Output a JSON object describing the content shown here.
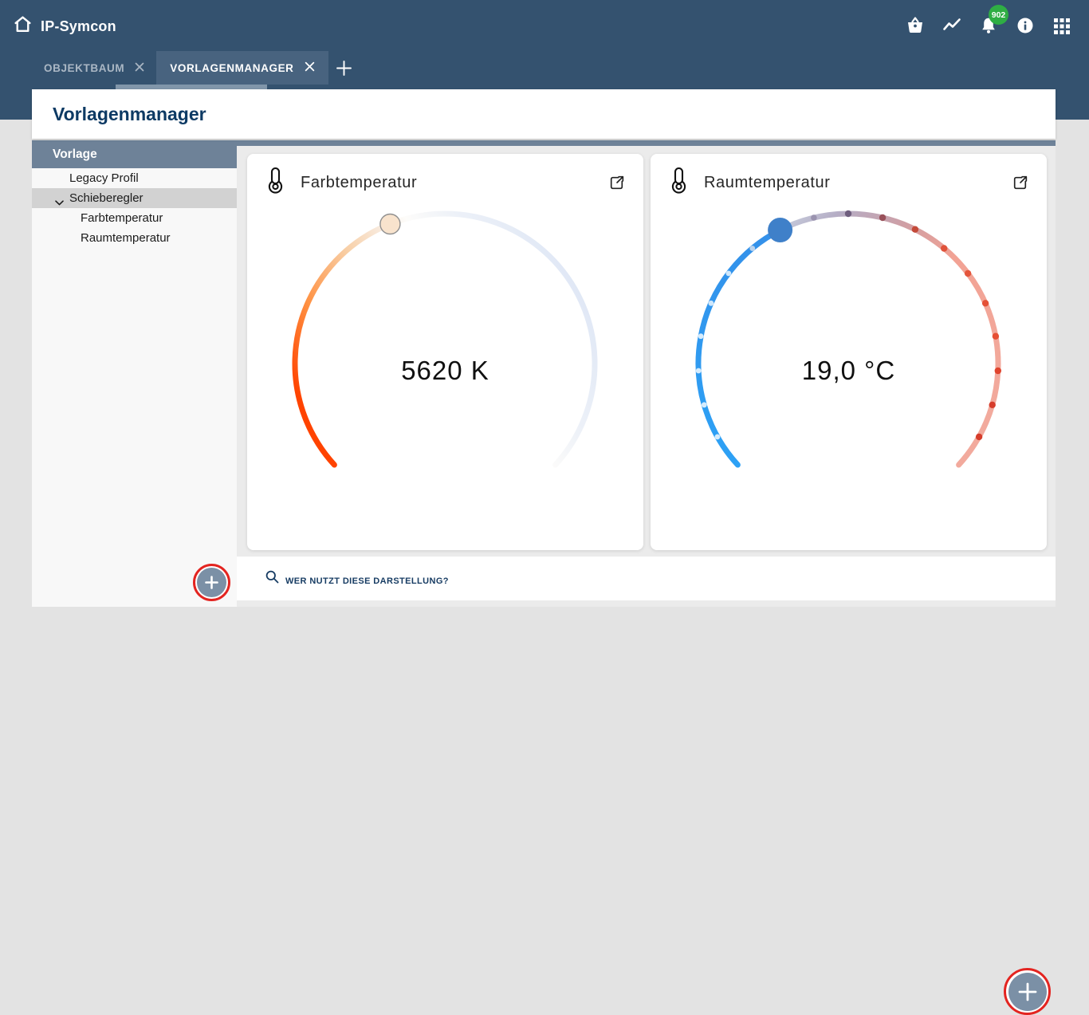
{
  "colors": {
    "header_bg": "#34526f",
    "active_tab_bg": "#48637f",
    "tab_underline": "#8196aa",
    "title_text": "#0d3a64",
    "slate_accent": "#6e8298",
    "selected_row": "#d2d2d2",
    "badge_green": "#2fae44",
    "ring_red": "#e32420",
    "plus_button_fill": "#7b90a6",
    "gauge1_warm": "#ff4300",
    "gauge1_cool": "#dfe7f5",
    "gauge1_knob": "#f8e3cd",
    "gauge2_blue": "#2f9ef2",
    "gauge2_knob": "#3f80c9",
    "gauge2_track": "#f2a294",
    "footer_text": "#173c63"
  },
  "header": {
    "app_title": "IP-Symcon",
    "notification_count": "902",
    "icons": [
      "home-icon",
      "store-basket-icon",
      "activity-trend-icon",
      "notifications-bell-icon",
      "info-icon",
      "apps-grid-icon"
    ]
  },
  "tabs": {
    "items": [
      {
        "label": "OBJEKTBAUM",
        "active": false
      },
      {
        "label": "VORLAGENMANAGER",
        "active": true
      }
    ]
  },
  "page": {
    "title": "Vorlagenmanager"
  },
  "sidebar": {
    "header": "Vorlage",
    "items": [
      {
        "label": "Legacy Profil",
        "level": 1,
        "selected": false,
        "expanded": null
      },
      {
        "label": "Schieberegler",
        "level": 1,
        "selected": true,
        "expanded": true
      },
      {
        "label": "Farbtemperatur",
        "level": 2,
        "selected": false,
        "expanded": null
      },
      {
        "label": "Raumtemperatur",
        "level": 2,
        "selected": false,
        "expanded": null
      }
    ]
  },
  "cards": [
    {
      "title": "Farbtemperatur",
      "value": "5620 K",
      "icon": "thermometer-icon",
      "action_icon": "external-link-icon"
    },
    {
      "title": "Raumtemperatur",
      "value": "19,0 °C",
      "icon": "thermometer-icon",
      "action_icon": "external-link-icon"
    }
  ],
  "footer": {
    "search_placeholder": "WER NUTZT DIESE DARSTELLUNG?"
  },
  "gauge2_ticks": [
    {
      "x": 35.9,
      "y": 303.9,
      "r": 3.4,
      "c": "#d6ecfd"
    },
    {
      "x": 19.3,
      "y": 263.8,
      "r": 3.4,
      "c": "#d6ecfd"
    },
    {
      "x": 12.2,
      "y": 221.0,
      "r": 3.4,
      "c": "#d6ecfd"
    },
    {
      "x": 15.1,
      "y": 177.7,
      "r": 3.4,
      "c": "#d6ecfd"
    },
    {
      "x": 27.9,
      "y": 136.3,
      "r": 3.4,
      "c": "#cfe7fb"
    },
    {
      "x": 49.9,
      "y": 98.9,
      "r": 3.4,
      "c": "#cfe7fb"
    },
    {
      "x": 79.8,
      "y": 67.5,
      "r": 3.4,
      "c": "#bcd3ec"
    },
    {
      "x": 156.9,
      "y": 29.0,
      "r": 3.8,
      "c": "#9a93af"
    },
    {
      "x": 200.0,
      "y": 24.0,
      "r": 4.2,
      "c": "#6f5e7e"
    },
    {
      "x": 243.1,
      "y": 29.0,
      "r": 4.2,
      "c": "#99515a"
    },
    {
      "x": 283.9,
      "y": 43.7,
      "r": 4.2,
      "c": "#c44a39"
    },
    {
      "x": 320.2,
      "y": 67.5,
      "r": 4.2,
      "c": "#e0523a"
    },
    {
      "x": 350.1,
      "y": 98.9,
      "r": 4.2,
      "c": "#e4553b"
    },
    {
      "x": 372.1,
      "y": 136.3,
      "r": 4.2,
      "c": "#e45036"
    },
    {
      "x": 384.9,
      "y": 177.7,
      "r": 4.2,
      "c": "#e64f34"
    },
    {
      "x": 387.8,
      "y": 221.0,
      "r": 4.2,
      "c": "#e0442e"
    },
    {
      "x": 380.7,
      "y": 263.8,
      "r": 4.2,
      "c": "#d63c2b"
    },
    {
      "x": 364.1,
      "y": 303.9,
      "r": 4.2,
      "c": "#d63c2b"
    }
  ]
}
